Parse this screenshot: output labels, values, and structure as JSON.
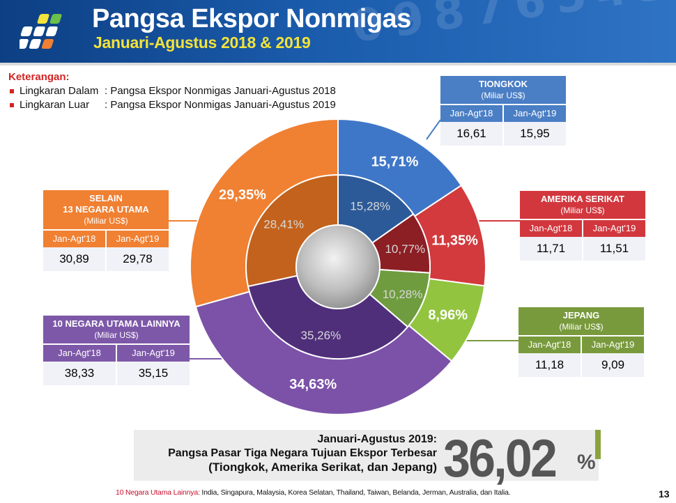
{
  "header": {
    "title": "Pangsa Ekspor Nonmigas",
    "subtitle": "Januari-Agustus 2018 & 2019",
    "background_color": "#1a5bab",
    "subtitle_color": "#f3e33a"
  },
  "legend": {
    "heading": "Keterangan:",
    "items": [
      {
        "key": "Lingkaran Dalam",
        "value": ": Pangsa Ekspor Nonmigas Januari-Agustus 2018"
      },
      {
        "key": "Lingkaran Luar",
        "value": ": Pangsa Ekspor Nonmigas Januari-Agustus 2019"
      }
    ]
  },
  "chart_data": {
    "type": "pie",
    "subtype": "nested-donut",
    "categories": [
      "Tiongkok",
      "Amerika Serikat",
      "Jepang",
      "10 Negara Utama Lainnya",
      "Selain 13 Negara Utama"
    ],
    "colors": [
      "#3f77c8",
      "#d23a3d",
      "#92c440",
      "#7c52a8",
      "#f08032"
    ],
    "series": [
      {
        "ring": "inner",
        "values": [
          15.28,
          10.77,
          10.28,
          35.26,
          28.41
        ],
        "labels": [
          "15,28%",
          "10,77%",
          "10,28%",
          "35,26%",
          "28,41%"
        ]
      },
      {
        "ring": "outer",
        "values": [
          15.71,
          11.35,
          8.96,
          34.63,
          29.35
        ],
        "labels": [
          "15,71%",
          "11,35%",
          "8,96%",
          "34,63%",
          "29,35%"
        ]
      }
    ]
  },
  "boxes": [
    {
      "id": "tiongkok",
      "title_lines": [
        "TIONGKOK"
      ],
      "unit": "(Miliar US$)",
      "col_2018": "Jan-Agt'18",
      "col_2019": "Jan-Agt'19",
      "val_2018": "16,61",
      "val_2019": "15,95",
      "color": "#4a7ec5"
    },
    {
      "id": "amerika",
      "title_lines": [
        "AMERIKA SERIKAT"
      ],
      "unit": "(Miliar US$)",
      "col_2018": "Jan-Agt'18",
      "col_2019": "Jan-Agt'19",
      "val_2018": "11,71",
      "val_2019": "11,51",
      "color": "#d2373e"
    },
    {
      "id": "jepang",
      "title_lines": [
        "JEPANG"
      ],
      "unit": "(Miliar US$)",
      "col_2018": "Jan-Agt'18",
      "col_2019": "Jan-Agt'19",
      "val_2018": "11,18",
      "val_2019": "9,09",
      "color": "#799a3c"
    },
    {
      "id": "lainnya",
      "title_lines": [
        "10 NEGARA UTAMA LAINNYA"
      ],
      "unit": "(Miliar US$)",
      "col_2018": "Jan-Agt'18",
      "col_2019": "Jan-Agt'19",
      "val_2018": "38,33",
      "val_2019": "35,15",
      "color": "#7d58a8"
    },
    {
      "id": "selain",
      "title_lines": [
        "SELAIN",
        "13 NEGARA UTAMA"
      ],
      "unit": "(Miliar US$)",
      "col_2018": "Jan-Agt'18",
      "col_2019": "Jan-Agt'19",
      "val_2018": "30,89",
      "val_2019": "29,78",
      "color": "#f08032"
    }
  ],
  "summary": {
    "line1": "Januari-Agustus 2019:",
    "line2": "Pangsa Pasar Tiga Negara Tujuan Ekspor Terbesar",
    "line3": "(Tiongkok, Amerika Serikat, dan Jepang)",
    "value": "36,02",
    "unit": "%"
  },
  "footnote": {
    "label": "10 Negara Utama Lainnya:",
    "text": " India, Singapura, Malaysia, Korea Selatan, Thailand, Taiwan, Belanda, Jerman, Australia, dan Italia."
  },
  "page_number": "13"
}
